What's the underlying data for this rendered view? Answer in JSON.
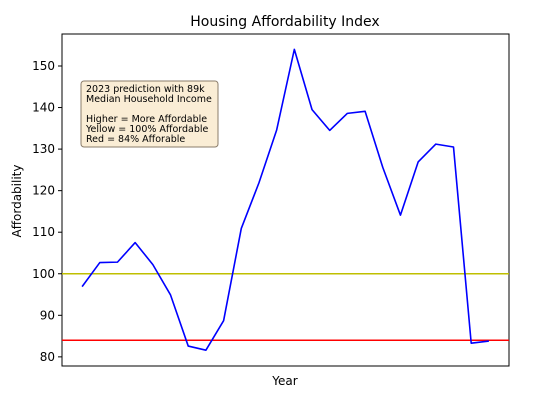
{
  "chart_data": {
    "type": "line",
    "title": "Housing Affordability Index",
    "xlabel": "Year",
    "ylabel": "Affordability",
    "ylim": [
      77.8,
      157.7
    ],
    "yticks": [
      80,
      90,
      100,
      110,
      120,
      130,
      140,
      150
    ],
    "xtick_labels_shown": false,
    "grid": false,
    "series": [
      {
        "color": "#0000ff",
        "values": [
          96.9,
          102.7,
          102.8,
          107.5,
          102.2,
          94.9,
          82.6,
          81.6,
          88.7,
          110.9,
          121.9,
          134.6,
          154.0,
          139.5,
          134.5,
          138.6,
          139.1,
          125.6,
          114.1,
          126.9,
          131.2,
          130.5,
          83.3,
          83.8
        ]
      }
    ],
    "reference_lines": [
      {
        "value": 100,
        "color": "#bfbf00"
      },
      {
        "value": 84,
        "color": "#ff0000"
      }
    ],
    "annotation": {
      "lines": [
        "2023 prediction with 89k",
        "Median Household Income",
        "",
        "Higher = More Affordable",
        "Yellow = 100% Affordable",
        "Red = 84% Afforable"
      ],
      "background": "#f5deb3",
      "border": "#8b7d6b"
    }
  }
}
